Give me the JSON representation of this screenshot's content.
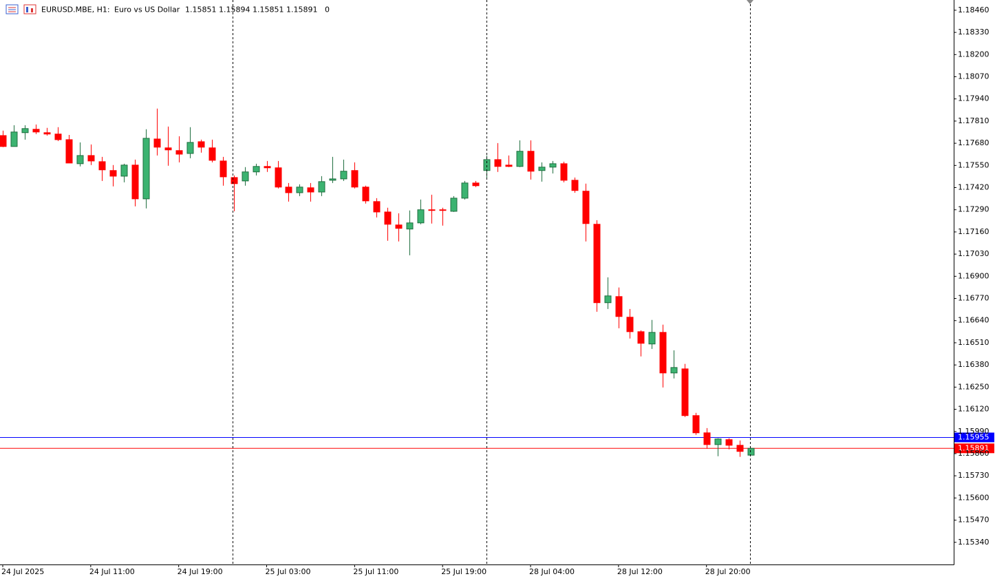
{
  "chart_data": {
    "type": "candlestick",
    "header": {
      "symbol": "EURUSD.MBE, H1:",
      "description": "Euro vs US Dollar",
      "ohlc": "1.15851 1.15894 1.15851 1.15891",
      "volume": "0"
    },
    "categories": [
      "24 Jul 2025",
      null,
      null,
      null,
      null,
      null,
      null,
      null,
      "24 Jul 11:00",
      null,
      null,
      null,
      null,
      null,
      null,
      null,
      "24 Jul 19:00",
      null,
      null,
      null,
      null,
      null,
      null,
      null,
      "25 Jul 03:00",
      null,
      null,
      null,
      null,
      null,
      null,
      null,
      "25 Jul 11:00",
      null,
      null,
      null,
      null,
      null,
      null,
      null,
      "25 Jul 19:00",
      null,
      null,
      null,
      null,
      null,
      null,
      null,
      "28 Jul 04:00",
      null,
      null,
      null,
      null,
      null,
      null,
      null,
      "28 Jul 12:00",
      null,
      null,
      null,
      null,
      null,
      null,
      null,
      "28 Jul 20:00",
      null,
      null,
      null,
      null
    ],
    "open": [
      1.17725,
      1.17661,
      1.17742,
      1.17762,
      1.17742,
      1.17734,
      1.17701,
      1.1756,
      1.17608,
      1.17572,
      1.1752,
      1.17487,
      1.17552,
      1.17354,
      1.17705,
      1.17653,
      1.17637,
      1.1762,
      1.17689,
      1.17653,
      1.17576,
      1.17479,
      1.17459,
      1.17512,
      1.17544,
      1.17536,
      1.17423,
      1.1739,
      1.17419,
      1.17394,
      1.17463,
      1.17471,
      1.1752,
      1.17423,
      1.17338,
      1.17277,
      1.17201,
      1.17177,
      1.17213,
      1.1729,
      1.1729,
      1.17281,
      1.17358,
      1.17447,
      1.1752,
      1.17584,
      1.17552,
      1.17544,
      1.17633,
      1.1752,
      1.1754,
      1.1756,
      1.17463,
      1.17399,
      1.17205,
      1.16745,
      1.16781,
      1.1666,
      1.16575,
      1.16503,
      1.16571,
      1.16333,
      1.16357,
      1.16083,
      1.15982,
      1.15913,
      1.15942,
      1.15909,
      1.15851
    ],
    "high": [
      1.17754,
      1.17786,
      1.17786,
      1.1779,
      1.1777,
      1.17774,
      1.17729,
      1.17685,
      1.17673,
      1.176,
      1.17552,
      1.1756,
      1.17584,
      1.17762,
      1.17883,
      1.17778,
      1.17721,
      1.17774,
      1.17701,
      1.17701,
      1.176,
      1.17491,
      1.1754,
      1.1756,
      1.17576,
      1.17576,
      1.17447,
      1.17439,
      1.17447,
      1.17487,
      1.176,
      1.17584,
      1.17568,
      1.17431,
      1.17358,
      1.17302,
      1.17269,
      1.17286,
      1.1735,
      1.17378,
      1.17302,
      1.1737,
      1.17459,
      1.17459,
      1.17608,
      1.17681,
      1.17608,
      1.17697,
      1.17697,
      1.17568,
      1.17576,
      1.17572,
      1.17479,
      1.17443,
      1.17229,
      1.16894,
      1.16834,
      1.16708,
      1.16583,
      1.16644,
      1.16616,
      1.16466,
      1.16386,
      1.16099,
      1.1601,
      1.1595,
      1.1595,
      1.15937,
      1.15894
    ],
    "low": [
      1.17657,
      1.17661,
      1.17701,
      1.17734,
      1.17725,
      1.17693,
      1.17564,
      1.17544,
      1.17552,
      1.17459,
      1.17427,
      1.17451,
      1.1731,
      1.17298,
      1.17608,
      1.17548,
      1.17568,
      1.17592,
      1.17625,
      1.17568,
      1.17431,
      1.17281,
      1.17431,
      1.17491,
      1.17512,
      1.17415,
      1.17338,
      1.1737,
      1.17338,
      1.1737,
      1.17447,
      1.17459,
      1.17415,
      1.17326,
      1.17245,
      1.17108,
      1.17104,
      1.17023,
      1.17205,
      1.17209,
      1.17197,
      1.17277,
      1.1735,
      1.17423,
      1.17475,
      1.17512,
      1.1754,
      1.1754,
      1.17467,
      1.17455,
      1.17503,
      1.17451,
      1.1739,
      1.17104,
      1.16692,
      1.16708,
      1.16595,
      1.16535,
      1.1643,
      1.16474,
      1.16248,
      1.16301,
      1.16075,
      1.1597,
      1.15889,
      1.15845,
      1.15885,
      1.15841,
      1.15851
    ],
    "close": [
      1.17661,
      1.17746,
      1.17766,
      1.17746,
      1.17734,
      1.17701,
      1.17564,
      1.17608,
      1.17576,
      1.17524,
      1.17487,
      1.17552,
      1.17354,
      1.17709,
      1.17657,
      1.17641,
      1.17616,
      1.17685,
      1.17657,
      1.1758,
      1.17483,
      1.17443,
      1.17512,
      1.17544,
      1.17536,
      1.17423,
      1.1739,
      1.17423,
      1.17394,
      1.17455,
      1.17471,
      1.17516,
      1.17423,
      1.17342,
      1.17277,
      1.17205,
      1.17181,
      1.17213,
      1.1729,
      1.17286,
      1.17286,
      1.17358,
      1.17447,
      1.17431,
      1.17584,
      1.17544,
      1.17544,
      1.17633,
      1.17516,
      1.1754,
      1.1756,
      1.17463,
      1.17403,
      1.17209,
      1.16745,
      1.16785,
      1.16664,
      1.16575,
      1.16507,
      1.16571,
      1.16333,
      1.16365,
      1.16083,
      1.15982,
      1.15913,
      1.15946,
      1.15909,
      1.15873,
      1.15891
    ],
    "up_color": "#3cb371",
    "down_color": "#ff0000",
    "price_lines": [
      {
        "value": 1.15955,
        "color": "#0000ff"
      },
      {
        "value": 1.15891,
        "color": "#ff0000"
      }
    ],
    "ylim": [
      1.1521,
      1.1852
    ],
    "yticks": [
      {
        "value": 1.1846,
        "label": "1.18460"
      },
      {
        "value": 1.1833,
        "label": "1.18330"
      },
      {
        "value": 1.182,
        "label": "1.18200"
      },
      {
        "value": 1.1807,
        "label": "1.18070"
      },
      {
        "value": 1.1794,
        "label": "1.17940"
      },
      {
        "value": 1.1781,
        "label": "1.17810"
      },
      {
        "value": 1.1768,
        "label": "1.17680"
      },
      {
        "value": 1.1755,
        "label": "1.17550"
      },
      {
        "value": 1.1742,
        "label": "1.17420"
      },
      {
        "value": 1.1729,
        "label": "1.17290"
      },
      {
        "value": 1.1716,
        "label": "1.17160"
      },
      {
        "value": 1.1703,
        "label": "1.17030"
      },
      {
        "value": 1.169,
        "label": "1.16900"
      },
      {
        "value": 1.1677,
        "label": "1.16770"
      },
      {
        "value": 1.1664,
        "label": "1.16640"
      },
      {
        "value": 1.1651,
        "label": "1.16510"
      },
      {
        "value": 1.1638,
        "label": "1.16380"
      },
      {
        "value": 1.1625,
        "label": "1.16250"
      },
      {
        "value": 1.1612,
        "label": "1.16120"
      },
      {
        "value": 1.1599,
        "label": "1.15990"
      },
      {
        "value": 1.1586,
        "label": "1.15860"
      },
      {
        "value": 1.1573,
        "label": "1.15730"
      },
      {
        "value": 1.156,
        "label": "1.15600"
      },
      {
        "value": 1.1547,
        "label": "1.15470"
      },
      {
        "value": 1.1534,
        "label": "1.15340"
      }
    ]
  }
}
